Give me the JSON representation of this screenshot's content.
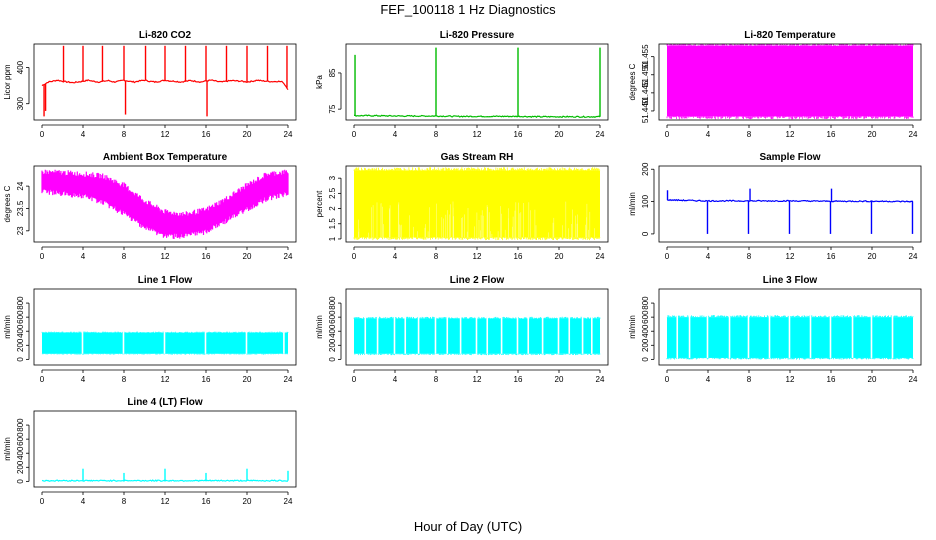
{
  "figure": {
    "title": "FEF_100118  1 Hz Diagnostics",
    "xlabel": "Hour of Day (UTC)"
  },
  "chart_data": [
    {
      "type": "line",
      "title": "Li-820 CO2",
      "ylabel": "Licor ppm",
      "color": "#ff0000",
      "x_ticks": [
        0,
        4,
        8,
        12,
        16,
        20,
        24
      ],
      "xlim": [
        0,
        24
      ],
      "y_ticks": [
        300,
        400
      ],
      "ylim": [
        255,
        465
      ],
      "series": [
        {
          "x": [
            0,
            0.3,
            0.6,
            1,
            1.5,
            2,
            2.5,
            3,
            3.5,
            4,
            4.5,
            5,
            5.5,
            6,
            6.5,
            7,
            7.5,
            8,
            8.5,
            9,
            9.5,
            10,
            10.5,
            11,
            11.5,
            12,
            12.5,
            13,
            13.5,
            14,
            14.5,
            15,
            15.5,
            16,
            16.5,
            17,
            17.5,
            18,
            18.5,
            19,
            19.5,
            20,
            20.5,
            21,
            21.5,
            22,
            22.5,
            23,
            23.5,
            24
          ],
          "y": [
            350,
            355,
            360,
            362,
            365,
            362,
            360,
            358,
            360,
            362,
            365,
            362,
            360,
            362,
            364,
            360,
            362,
            365,
            362,
            360,
            363,
            365,
            362,
            360,
            362,
            365,
            363,
            362,
            360,
            362,
            364,
            362,
            360,
            363,
            365,
            362,
            360,
            362,
            364,
            363,
            362,
            360,
            362,
            365,
            363,
            362,
            361,
            362,
            360,
            340
          ]
        }
      ],
      "spikes": [
        {
          "x": 0.2,
          "y": 265
        },
        {
          "x": 0.35,
          "y": 280
        },
        {
          "x": 2.1,
          "y": 460
        },
        {
          "x": 4.0,
          "y": 460
        },
        {
          "x": 5.9,
          "y": 460
        },
        {
          "x": 8.0,
          "y": 460
        },
        {
          "x": 8.15,
          "y": 270
        },
        {
          "x": 10.1,
          "y": 460
        },
        {
          "x": 12.0,
          "y": 460
        },
        {
          "x": 14.0,
          "y": 460
        },
        {
          "x": 16.0,
          "y": 460
        },
        {
          "x": 16.1,
          "y": 265
        },
        {
          "x": 18.0,
          "y": 460
        },
        {
          "x": 20.0,
          "y": 460
        },
        {
          "x": 22.0,
          "y": 460
        },
        {
          "x": 23.9,
          "y": 460
        }
      ]
    },
    {
      "type": "line",
      "title": "Li-820 Pressure",
      "ylabel": "kPa",
      "color": "#00bb00",
      "x_ticks": [
        0,
        4,
        8,
        12,
        16,
        20,
        24
      ],
      "xlim": [
        0,
        24
      ],
      "y_ticks": [
        75,
        85
      ],
      "ylim": [
        72,
        93
      ],
      "series": [
        {
          "x": [
            0,
            2,
            4,
            6,
            8,
            10,
            12,
            14,
            16,
            18,
            20,
            22,
            24
          ],
          "y": [
            73.2,
            73.2,
            73.1,
            73.1,
            73.1,
            73.0,
            73.0,
            73.0,
            73.0,
            72.9,
            72.9,
            72.9,
            72.9
          ]
        }
      ],
      "spikes": [
        {
          "x": 0.1,
          "y": 90
        },
        {
          "x": 8.0,
          "y": 92
        },
        {
          "x": 16.0,
          "y": 92
        },
        {
          "x": 24.0,
          "y": 92
        }
      ]
    },
    {
      "type": "area",
      "title": "Li-820 Temperature",
      "ylabel": "degrees C",
      "color": "#ff00ff",
      "x_ticks": [
        0,
        4,
        8,
        12,
        16,
        20,
        24
      ],
      "xlim": [
        0,
        24
      ],
      "y_ticks": [
        51.44,
        51.445,
        51.45,
        51.455
      ],
      "ylim": [
        51.4375,
        51.4585
      ],
      "band": {
        "x0": 0,
        "x1": 24,
        "y0": 51.4385,
        "y1": 51.458
      }
    },
    {
      "type": "line",
      "title": "Ambient Box Temperature",
      "ylabel": "degrees C",
      "color": "#ff00ff",
      "x_ticks": [
        0,
        4,
        8,
        12,
        16,
        20,
        24
      ],
      "xlim": [
        0,
        24
      ],
      "y_ticks": [
        23.0,
        23.5,
        24.0
      ],
      "ylim": [
        22.75,
        24.45
      ],
      "upper": {
        "x": [
          0,
          2,
          4,
          6,
          8,
          10,
          12,
          14,
          16,
          18,
          20,
          22,
          24
        ],
        "y": [
          24.3,
          24.28,
          24.25,
          24.2,
          24.0,
          23.65,
          23.4,
          23.35,
          23.45,
          23.7,
          24.0,
          24.25,
          24.3
        ]
      },
      "lower": {
        "x": [
          0,
          2,
          4,
          6,
          8,
          10,
          12,
          14,
          16,
          18,
          20,
          22,
          24
        ],
        "y": [
          23.9,
          23.85,
          23.8,
          23.65,
          23.4,
          23.1,
          22.9,
          22.9,
          23.0,
          23.25,
          23.5,
          23.75,
          23.85
        ]
      }
    },
    {
      "type": "area",
      "title": "Gas Stream RH",
      "ylabel": "percent",
      "color": "#ffff00",
      "x_ticks": [
        0,
        4,
        8,
        12,
        16,
        20,
        24
      ],
      "xlim": [
        0,
        24
      ],
      "y_ticks": [
        1.0,
        1.5,
        2.0,
        2.5,
        3.0
      ],
      "ylim": [
        0.9,
        3.4
      ],
      "band": {
        "x0": 0,
        "x1": 24,
        "y0": 1.05,
        "y1": 3.25
      }
    },
    {
      "type": "line",
      "title": "Sample Flow",
      "ylabel": "ml/min",
      "color": "#0000ff",
      "x_ticks": [
        0,
        4,
        8,
        12,
        16,
        20,
        24
      ],
      "xlim": [
        0,
        24
      ],
      "y_ticks": [
        0,
        100,
        200
      ],
      "ylim": [
        -25,
        210
      ],
      "series": [
        {
          "x": [
            0,
            4,
            8,
            12,
            16,
            20,
            24
          ],
          "y": [
            105,
            102,
            102,
            102,
            101,
            101,
            100
          ]
        }
      ],
      "spikes": [
        {
          "x": 0.05,
          "y": 135
        },
        {
          "x": 3.95,
          "y": 0
        },
        {
          "x": 7.95,
          "y": 0
        },
        {
          "x": 8.1,
          "y": 140
        },
        {
          "x": 11.95,
          "y": 0
        },
        {
          "x": 15.95,
          "y": 0
        },
        {
          "x": 16.05,
          "y": 140
        },
        {
          "x": 19.95,
          "y": 0
        },
        {
          "x": 23.95,
          "y": 0
        }
      ]
    },
    {
      "type": "area",
      "title": "Line 1 Flow",
      "ylabel": "ml/min",
      "color": "#00ffff",
      "x_ticks": [
        0,
        4,
        8,
        12,
        16,
        20,
        24
      ],
      "xlim": [
        0,
        24
      ],
      "y_ticks": [
        0,
        200,
        400,
        600,
        800
      ],
      "ylim": [
        -80,
        1000
      ],
      "band": {
        "x0": 0,
        "x1": 24,
        "y0": 80,
        "y1": 380
      },
      "gaps": [
        3.95,
        7.95,
        11.95,
        15.95,
        19.95,
        23.6
      ]
    },
    {
      "type": "area",
      "title": "Line 2 Flow",
      "ylabel": "ml/min",
      "color": "#00ffff",
      "x_ticks": [
        0,
        4,
        8,
        12,
        16,
        20,
        24
      ],
      "xlim": [
        0,
        24
      ],
      "y_ticks": [
        0,
        200,
        400,
        600,
        800
      ],
      "ylim": [
        -80,
        1000
      ],
      "band": {
        "x0": 0,
        "x1": 24,
        "y0": 80,
        "y1": 580
      },
      "gaps": [
        1.1,
        2.3,
        3.95,
        5.0,
        6.3,
        7.95,
        9.1,
        10.4,
        11.95,
        13.0,
        14.4,
        15.95,
        17.0,
        18.4,
        19.95,
        21.0,
        22.3,
        23.2
      ]
    },
    {
      "type": "area",
      "title": "Line 3 Flow",
      "ylabel": "ml/min",
      "color": "#00ffff",
      "x_ticks": [
        0,
        4,
        8,
        12,
        16,
        20,
        24
      ],
      "xlim": [
        0,
        24
      ],
      "y_ticks": [
        0,
        200,
        400,
        600,
        800
      ],
      "ylim": [
        -80,
        1000
      ],
      "band": {
        "x0": 0,
        "x1": 24,
        "y0": 20,
        "y1": 600
      },
      "gaps": [
        1.0,
        2.2,
        3.95,
        6.1,
        7.95,
        10.0,
        11.95,
        14.0,
        15.95,
        18.1,
        19.95,
        22.0
      ]
    },
    {
      "type": "line",
      "title": "Line 4 (LT) Flow",
      "ylabel": "ml/min",
      "color": "#00ffff",
      "x_ticks": [
        0,
        4,
        8,
        12,
        16,
        20,
        24
      ],
      "xlim": [
        0,
        24
      ],
      "y_ticks": [
        0,
        200,
        400,
        600,
        800
      ],
      "ylim": [
        -80,
        1000
      ],
      "series": [
        {
          "x": [
            0,
            4,
            8,
            12,
            16,
            20,
            24
          ],
          "y": [
            10,
            10,
            10,
            10,
            10,
            10,
            10
          ]
        }
      ],
      "spikes": [
        {
          "x": 4.0,
          "y": 180
        },
        {
          "x": 8.0,
          "y": 120
        },
        {
          "x": 12.0,
          "y": 180
        },
        {
          "x": 16.0,
          "y": 120
        },
        {
          "x": 20.0,
          "y": 180
        },
        {
          "x": 24.0,
          "y": 150
        }
      ]
    }
  ]
}
